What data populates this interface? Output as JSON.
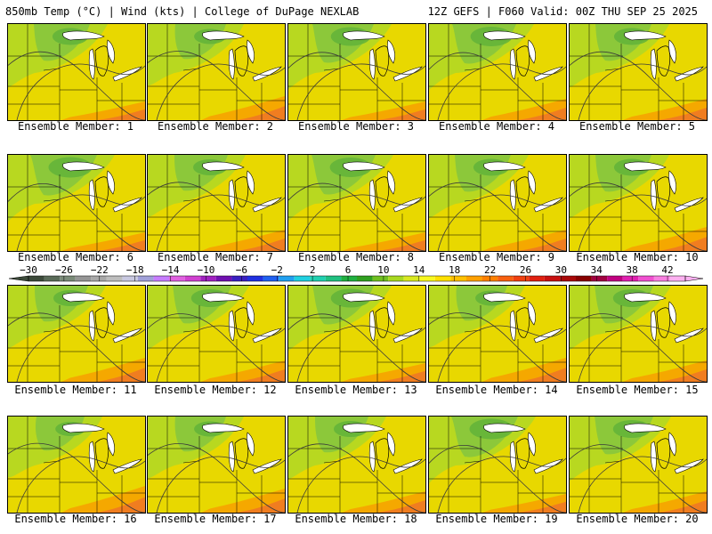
{
  "header": {
    "left": "850mb Temp (°C) | Wind (kts) | College of DuPage NEXLAB",
    "right": "12Z GEFS | F060 Valid: 00Z THU SEP 25 2025"
  },
  "member_prefix": "Ensemble Member: ",
  "members": [
    {
      "label": "Ensemble Member: 1",
      "green": 0.55,
      "orange": 0.35
    },
    {
      "label": "Ensemble Member: 2",
      "green": 0.45,
      "orange": 0.45
    },
    {
      "label": "Ensemble Member: 3",
      "green": 0.65,
      "orange": 0.35
    },
    {
      "label": "Ensemble Member: 4",
      "green": 0.7,
      "orange": 0.4
    },
    {
      "label": "Ensemble Member: 5",
      "green": 0.55,
      "orange": 0.4
    },
    {
      "label": "Ensemble Member: 6",
      "green": 0.75,
      "orange": 0.35
    },
    {
      "label": "Ensemble Member: 7",
      "green": 0.5,
      "orange": 0.4
    },
    {
      "label": "Ensemble Member: 8",
      "green": 0.7,
      "orange": 0.35
    },
    {
      "label": "Ensemble Member: 9",
      "green": 0.55,
      "orange": 0.4
    },
    {
      "label": "Ensemble Member: 10",
      "green": 0.55,
      "orange": 0.45
    },
    {
      "label": "Ensemble Member: 11",
      "green": 0.5,
      "orange": 0.45
    },
    {
      "label": "Ensemble Member: 12",
      "green": 0.6,
      "orange": 0.4
    },
    {
      "label": "Ensemble Member: 13",
      "green": 0.65,
      "orange": 0.35
    },
    {
      "label": "Ensemble Member: 14",
      "green": 0.45,
      "orange": 0.45
    },
    {
      "label": "Ensemble Member: 15",
      "green": 0.6,
      "orange": 0.4
    },
    {
      "label": "Ensemble Member: 16",
      "green": 0.4,
      "orange": 0.5
    },
    {
      "label": "Ensemble Member: 17",
      "green": 0.45,
      "orange": 0.45
    },
    {
      "label": "Ensemble Member: 18",
      "green": 0.5,
      "orange": 0.4
    },
    {
      "label": "Ensemble Member: 19",
      "green": 0.75,
      "orange": 0.35
    },
    {
      "label": "Ensemble Member: 20",
      "green": 0.6,
      "orange": 0.4
    }
  ],
  "colorbar": {
    "tick_labels": [
      "-30",
      "-26",
      "-22",
      "-18",
      "-14",
      "-10",
      "-6",
      "-2",
      "2",
      "6",
      "10",
      "14",
      "18",
      "22",
      "26",
      "30",
      "34",
      "38",
      "42"
    ],
    "min": -30,
    "max": 44,
    "step": 2,
    "colors": [
      "#3c4a3a",
      "#5a6b58",
      "#7a8a78",
      "#959595",
      "#a8a8a8",
      "#bdbdbd",
      "#c8c8e0",
      "#a0a0d8",
      "#c77dff",
      "#e060e0",
      "#d040d0",
      "#a020c0",
      "#7010b0",
      "#3a20c0",
      "#2030e0",
      "#2060f0",
      "#20a0f0",
      "#20d0e0",
      "#20d0b0",
      "#20c080",
      "#20b040",
      "#30a020",
      "#70c020",
      "#a8d820",
      "#d8e820",
      "#f8f820",
      "#ffe000",
      "#ffc000",
      "#ffa000",
      "#ff8000",
      "#f86010",
      "#f04010",
      "#e02010",
      "#c81010",
      "#a80808",
      "#880000",
      "#a00040",
      "#c00080",
      "#e020b0",
      "#f050d0",
      "#f880e0",
      "#fcb0f0"
    ]
  }
}
